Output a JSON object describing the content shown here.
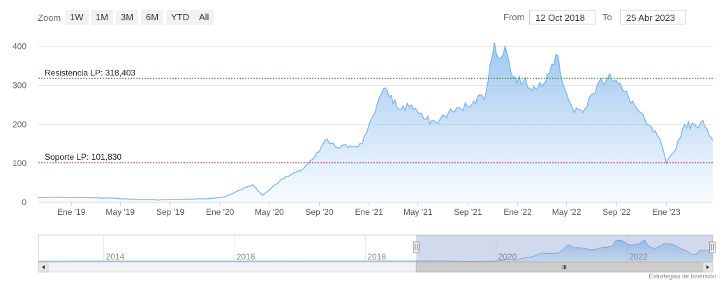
{
  "toolbar": {
    "zoom_label": "Zoom",
    "buttons": [
      "1W",
      "1M",
      "3M",
      "6M",
      "YTD",
      "All"
    ],
    "from_label": "From",
    "from_value": "12 Oct 2018",
    "to_label": "To",
    "to_value": "25 Abr 2023"
  },
  "credit": "Estrategias de Inversión",
  "colors": {
    "line": "#7cb5ec",
    "resistance": "#2e7d32",
    "support": "#8b1a1a"
  },
  "chart_data": {
    "type": "area",
    "y_ticks": [
      0,
      100,
      200,
      300,
      400
    ],
    "ylim": [
      0,
      430
    ],
    "x_ticks": [
      "Ene '19",
      "May '19",
      "Sep '19",
      "Ene '20",
      "May '20",
      "Sep '20",
      "Ene '21",
      "May '21",
      "Sep '21",
      "Ene '22",
      "May '22",
      "Sep '22",
      "Ene '23"
    ],
    "xlim": [
      "2018-10-12",
      "2023-04-25"
    ],
    "grid": true,
    "series": [
      {
        "x": [
          "2018-10-12",
          "2018-12-01",
          "2019-02-01",
          "2019-04-01",
          "2019-06-01",
          "2019-08-01",
          "2019-10-01",
          "2019-12-01",
          "2020-01-15",
          "2020-02-15",
          "2020-03-20",
          "2020-04-15",
          "2020-06-01",
          "2020-07-15",
          "2020-08-15",
          "2020-09-01",
          "2020-09-15",
          "2020-10-15",
          "2020-11-15",
          "2020-12-15",
          "2021-01-01",
          "2021-02-01",
          "2021-02-15",
          "2021-03-15",
          "2021-04-15",
          "2021-05-15",
          "2021-06-15",
          "2021-07-15",
          "2021-08-15",
          "2021-09-15",
          "2021-10-15",
          "2021-11-05",
          "2021-11-15",
          "2021-12-01",
          "2021-12-20",
          "2022-01-15",
          "2022-02-15",
          "2022-03-15",
          "2022-04-05",
          "2022-05-01",
          "2022-05-20",
          "2022-06-15",
          "2022-07-15",
          "2022-08-15",
          "2022-09-15",
          "2022-10-15",
          "2022-11-15",
          "2022-12-15",
          "2023-01-01",
          "2023-01-20",
          "2023-02-15",
          "2023-03-15",
          "2023-04-01",
          "2023-04-25"
        ],
        "y": [
          12,
          13,
          12,
          11,
          8,
          6,
          8,
          9,
          14,
          30,
          45,
          18,
          60,
          80,
          110,
          130,
          160,
          140,
          145,
          150,
          200,
          280,
          285,
          240,
          250,
          215,
          205,
          230,
          240,
          260,
          280,
          410,
          370,
          400,
          320,
          310,
          290,
          330,
          380,
          280,
          230,
          240,
          300,
          330,
          290,
          250,
          200,
          165,
          100,
          130,
          200,
          195,
          210,
          160
        ]
      }
    ],
    "annotations": [
      {
        "label": "Resistencia LP: 318,403",
        "value": 318.403
      },
      {
        "label": "Soporte LP: 101,830",
        "value": 101.83
      }
    ],
    "navigator": {
      "year_labels": [
        "2014",
        "2016",
        "2018",
        "2020",
        "2022"
      ],
      "range_start": "2018-10-12",
      "range_end": "2023-04-25"
    }
  }
}
